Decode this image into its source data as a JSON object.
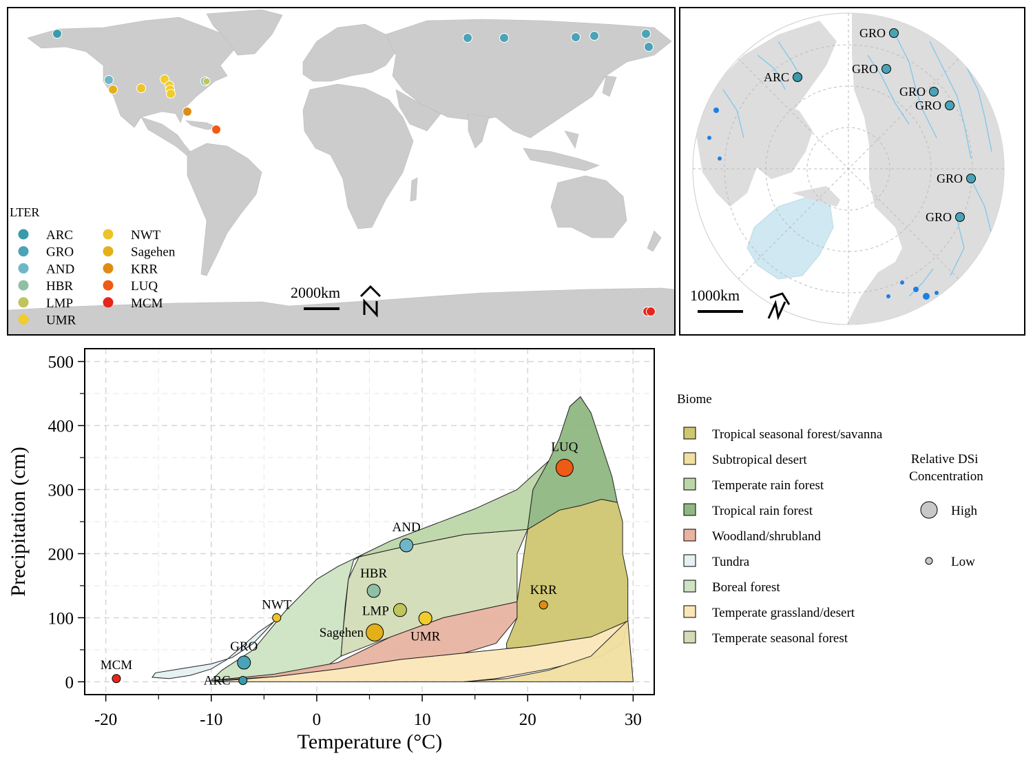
{
  "colors": {
    "ARC": "#3a9aac",
    "GRO": "#4aa3b7",
    "AND": "#6fb6c8",
    "HBR": "#8fbfa5",
    "LMP": "#bfc45c",
    "UMR": "#f0cc2c",
    "NWT": "#eec32a",
    "Sagehen": "#e3b01a",
    "KRR": "#df8d12",
    "LUQ": "#ef5a14",
    "MCM": "#e6261c",
    "land": "#cccccc",
    "ocean": "#ffffff",
    "river": "#7cc7ec",
    "lake": "#1e7fe0",
    "ice": "#cfe8f2"
  },
  "world_map": {
    "legend_title": "LTER",
    "legend_items": [
      "ARC",
      "GRO",
      "AND",
      "HBR",
      "LMP",
      "UMR",
      "NWT",
      "Sagehen",
      "KRR",
      "LUQ",
      "MCM"
    ],
    "scale_label": "2000km",
    "north_arrow": "north-arrow-icon"
  },
  "polar_map": {
    "labels": [
      "ARC",
      "GRO",
      "GRO",
      "GRO",
      "GRO",
      "GRO",
      "GRO"
    ],
    "scale_label": "1000km",
    "north_arrow": "north-arrow-icon"
  },
  "chart_data": {
    "type": "scatter",
    "xlabel": "Temperature (°C)",
    "ylabel": "Precipitation (cm)",
    "xlim": [
      -22,
      32
    ],
    "ylim": [
      -20,
      520
    ],
    "xticks": [
      -20,
      -10,
      0,
      10,
      20,
      30
    ],
    "yticks": [
      0,
      100,
      200,
      300,
      400,
      500
    ],
    "grid": true,
    "points": [
      {
        "site": "MCM",
        "x": -19.0,
        "y": 5,
        "size": "low"
      },
      {
        "site": "GRO",
        "x": -6.9,
        "y": 30,
        "size": "mid"
      },
      {
        "site": "ARC",
        "x": -7.0,
        "y": 2,
        "size": "low"
      },
      {
        "site": "NWT",
        "x": -3.8,
        "y": 100,
        "size": "low"
      },
      {
        "site": "HBR",
        "x": 5.4,
        "y": 142,
        "size": "mid"
      },
      {
        "site": "AND",
        "x": 8.5,
        "y": 213,
        "size": "mid"
      },
      {
        "site": "LMP",
        "x": 7.9,
        "y": 112,
        "size": "mid"
      },
      {
        "site": "UMR",
        "x": 10.3,
        "y": 99,
        "size": "mid"
      },
      {
        "site": "Sagehen",
        "x": 5.5,
        "y": 77,
        "size": "high"
      },
      {
        "site": "KRR",
        "x": 21.5,
        "y": 120,
        "size": "low"
      },
      {
        "site": "LUQ",
        "x": 23.5,
        "y": 334,
        "size": "high"
      }
    ],
    "biome_legend_title": "Biome",
    "biomes": [
      {
        "name": "Tropical seasonal forest/savanna",
        "color": "#cfc670"
      },
      {
        "name": "Subtropical desert",
        "color": "#f0dfa0"
      },
      {
        "name": "Temperate rain forest",
        "color": "#bcd6a8"
      },
      {
        "name": "Tropical rain forest",
        "color": "#8fb782"
      },
      {
        "name": "Woodland/shrubland",
        "color": "#e8b3a0"
      },
      {
        "name": "Tundra",
        "color": "#e4f0f2"
      },
      {
        "name": "Boreal forest",
        "color": "#cde3c3"
      },
      {
        "name": "Temperate grassland/desert",
        "color": "#fbe6b8"
      },
      {
        "name": "Temperate seasonal forest",
        "color": "#d3dcb6"
      }
    ],
    "size_legend_title": "Relative DSi Concentration",
    "size_legend_items": [
      "High",
      "Low"
    ],
    "biome_regions": {
      "tundra": [
        [
          -15.6,
          7
        ],
        [
          -15.3,
          14
        ],
        [
          -13,
          20
        ],
        [
          -10,
          28
        ],
        [
          -8,
          38
        ],
        [
          -6,
          60
        ],
        [
          -4,
          95
        ],
        [
          -3.5,
          100
        ],
        [
          -5.5,
          78
        ],
        [
          -8.5,
          35
        ],
        [
          -10,
          20
        ],
        [
          -12,
          10
        ],
        [
          -14,
          5
        ]
      ],
      "boreal": [
        [
          -10,
          2
        ],
        [
          -9,
          18
        ],
        [
          -6,
          50
        ],
        [
          -5,
          70
        ],
        [
          -3,
          110
        ],
        [
          0,
          160
        ],
        [
          2,
          180
        ],
        [
          4.5,
          200
        ],
        [
          3.5,
          190
        ],
        [
          3,
          160
        ],
        [
          2.7,
          120
        ],
        [
          2.5,
          80
        ],
        [
          2.3,
          40
        ],
        [
          1,
          25
        ],
        [
          -4,
          8
        ]
      ],
      "grassland": [
        [
          -10,
          0
        ],
        [
          -4,
          8
        ],
        [
          2,
          20
        ],
        [
          8,
          35
        ],
        [
          14,
          45
        ],
        [
          20,
          55
        ],
        [
          26,
          70
        ],
        [
          29.5,
          95
        ],
        [
          29,
          60
        ],
        [
          27,
          40
        ],
        [
          22,
          20
        ],
        [
          17,
          5
        ],
        [
          14,
          0
        ]
      ],
      "subtropical": [
        [
          14,
          0
        ],
        [
          18,
          5
        ],
        [
          22,
          18
        ],
        [
          26,
          40
        ],
        [
          29.5,
          96
        ],
        [
          30,
          0
        ]
      ],
      "woodland": [
        [
          -10,
          2
        ],
        [
          -4,
          12
        ],
        [
          2,
          30
        ],
        [
          7,
          70
        ],
        [
          12,
          100
        ],
        [
          19,
          125
        ],
        [
          19,
          100
        ],
        [
          17,
          60
        ],
        [
          14,
          45
        ],
        [
          8,
          35
        ],
        [
          2,
          20
        ],
        [
          -4,
          8
        ]
      ],
      "temp_seasonal": [
        [
          2.5,
          80
        ],
        [
          3,
          160
        ],
        [
          4,
          195
        ],
        [
          8,
          210
        ],
        [
          14,
          230
        ],
        [
          20,
          238
        ],
        [
          19,
          200
        ],
        [
          19,
          125
        ],
        [
          12,
          100
        ],
        [
          7,
          70
        ],
        [
          2.3,
          40
        ]
      ],
      "temp_rain": [
        [
          4.5,
          200
        ],
        [
          7,
          220
        ],
        [
          11,
          245
        ],
        [
          15,
          270
        ],
        [
          19,
          300
        ],
        [
          22,
          345
        ],
        [
          20.5,
          300
        ],
        [
          20,
          238
        ],
        [
          14,
          230
        ],
        [
          8,
          210
        ],
        [
          4,
          195
        ]
      ],
      "trop_seasonal": [
        [
          19,
          125
        ],
        [
          20,
          238
        ],
        [
          23,
          268
        ],
        [
          25,
          275
        ],
        [
          27,
          285
        ],
        [
          28.5,
          280
        ],
        [
          29,
          250
        ],
        [
          29,
          200
        ],
        [
          29.5,
          160
        ],
        [
          29.5,
          95
        ],
        [
          26,
          70
        ],
        [
          20,
          55
        ],
        [
          18,
          52
        ],
        [
          18,
          60
        ],
        [
          19,
          100
        ]
      ],
      "trop_rain": [
        [
          20,
          238
        ],
        [
          20.5,
          300
        ],
        [
          22,
          345
        ],
        [
          23,
          380
        ],
        [
          24,
          430
        ],
        [
          25,
          445
        ],
        [
          26,
          420
        ],
        [
          27,
          370
        ],
        [
          28,
          320
        ],
        [
          28.5,
          280
        ],
        [
          27,
          285
        ],
        [
          25,
          275
        ],
        [
          23,
          268
        ]
      ]
    }
  }
}
